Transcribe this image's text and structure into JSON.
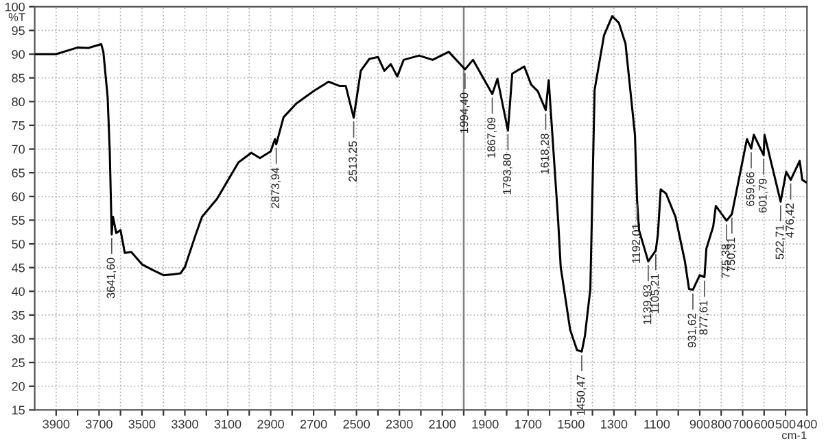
{
  "chart_data": {
    "type": "line",
    "xlabel": "cm-1",
    "ylabel": "%T",
    "x": [
      4000,
      3900,
      3800,
      3750,
      3690,
      3680,
      3660,
      3650,
      3641,
      3635,
      3620,
      3600,
      3580,
      3550,
      3500,
      3450,
      3400,
      3350,
      3320,
      3300,
      3250,
      3220,
      3150,
      3050,
      2990,
      2950,
      2900,
      2880,
      2874,
      2840,
      2780,
      2700,
      2630,
      2580,
      2550,
      2513,
      2480,
      2440,
      2400,
      2370,
      2340,
      2310,
      2280,
      2208,
      2145,
      2070,
      1994,
      1957,
      1867,
      1843,
      1794,
      1774,
      1718,
      1686,
      1655,
      1618,
      1604,
      1560,
      1548,
      1504,
      1472,
      1450,
      1435,
      1410,
      1390,
      1346,
      1308,
      1277,
      1246,
      1202,
      1192,
      1183,
      1140,
      1105,
      1095,
      1082,
      1057,
      1013,
      969,
      950,
      932,
      900,
      878,
      869,
      837,
      825,
      775,
      750,
      718,
      680,
      660,
      648,
      602,
      598,
      523,
      497,
      476,
      434,
      422,
      405
    ],
    "series": [
      {
        "color": "#000000",
        "values": [
          90,
          90,
          91.4,
          91.3,
          92.1,
          90.5,
          81,
          69.3,
          52,
          55.7,
          52.3,
          52.9,
          48.1,
          48.3,
          45.7,
          44.5,
          43.4,
          43.6,
          43.8,
          45.1,
          51.9,
          55.7,
          59.5,
          67.2,
          69.2,
          68.1,
          69.5,
          72.1,
          71,
          76.7,
          79.6,
          82.2,
          84.2,
          83.3,
          83.3,
          76.6,
          86.5,
          89,
          89.4,
          86.5,
          87.9,
          85.3,
          88.8,
          89.7,
          88.8,
          90.5,
          86.8,
          88.8,
          81.6,
          84.8,
          73.9,
          85.9,
          87.4,
          83.6,
          82.2,
          78.2,
          84.5,
          54.9,
          45.1,
          31.9,
          27.6,
          27.3,
          30.7,
          40.5,
          82.5,
          94,
          98,
          96.6,
          92.2,
          73,
          59.2,
          52.9,
          46.3,
          48.6,
          52,
          61.5,
          60.6,
          55.7,
          46.3,
          40.5,
          40.3,
          43.4,
          43,
          49,
          53.7,
          58,
          54.9,
          56.3,
          63.5,
          72.1,
          70.1,
          73,
          68.7,
          73,
          58.9,
          65.2,
          63.5,
          67.5,
          63.5,
          63
        ]
      }
    ],
    "xlim": [
      4000,
      400
    ],
    "ylim": [
      15,
      100
    ],
    "xticks": [
      3900,
      {
        "value": 3800,
        "label": null
      },
      3700,
      {
        "value": 3600,
        "label": null
      },
      3500,
      {
        "value": 3400,
        "label": null
      },
      3300,
      {
        "value": 3200,
        "label": null
      },
      3100,
      {
        "value": 3000,
        "label": null
      },
      2900,
      {
        "value": 2800,
        "label": null
      },
      2700,
      {
        "value": 2600,
        "label": null
      },
      2500,
      {
        "value": 2400,
        "label": null
      },
      2300,
      {
        "value": 2200,
        "label": null
      },
      2100,
      {
        "value": 2000,
        "label": null
      },
      1900,
      {
        "value": 1800,
        "label": null
      },
      1700,
      {
        "value": 1600,
        "label": null
      },
      1500,
      {
        "value": 1400,
        "label": null
      },
      1300,
      {
        "value": 1200,
        "label": null
      },
      1100,
      {
        "value": 1000,
        "label": null
      },
      900,
      800,
      700,
      600,
      500,
      400
    ],
    "yticks": [
      15,
      20,
      25,
      30,
      35,
      40,
      45,
      50,
      55,
      60,
      65,
      70,
      75,
      80,
      85,
      90,
      95,
      100
    ],
    "grid": true,
    "line_style": "solid",
    "marker": "none",
    "ref_lines": [
      {
        "axis": "x",
        "value": 2000,
        "color": "#808080"
      }
    ],
    "annotations": [
      {
        "text": "3641,60",
        "x": 3641,
        "y": 52
      },
      {
        "text": "2873,94",
        "x": 2874,
        "y": 71
      },
      {
        "text": "2513,25",
        "x": 2513,
        "y": 76.6
      },
      {
        "text": "1994,40",
        "x": 1994,
        "y": 86.8
      },
      {
        "text": "1867,09",
        "x": 1867,
        "y": 81.6
      },
      {
        "text": "1793,80",
        "x": 1794,
        "y": 73.9
      },
      {
        "text": "1618,28",
        "x": 1618,
        "y": 78.2
      },
      {
        "text": "1450,47",
        "x": 1450,
        "y": 27.3
      },
      {
        "text": "1192,01",
        "x": 1192,
        "y": 59.2
      },
      {
        "text": "1139,93",
        "x": 1140,
        "y": 46.3
      },
      {
        "text": "1105,21",
        "x": 1105,
        "y": 48.6
      },
      {
        "text": "931,62",
        "x": 932,
        "y": 40.3
      },
      {
        "text": "877,61",
        "x": 878,
        "y": 43
      },
      {
        "text": "775,38",
        "x": 775,
        "y": 54.9
      },
      {
        "text": "750,31",
        "x": 750,
        "y": 56.3
      },
      {
        "text": "659,66",
        "x": 660,
        "y": 70.1
      },
      {
        "text": "601,79",
        "x": 602,
        "y": 68.7
      },
      {
        "text": "522,71",
        "x": 523,
        "y": 58.9
      },
      {
        "text": "476,42",
        "x": 476,
        "y": 63.5
      }
    ]
  }
}
